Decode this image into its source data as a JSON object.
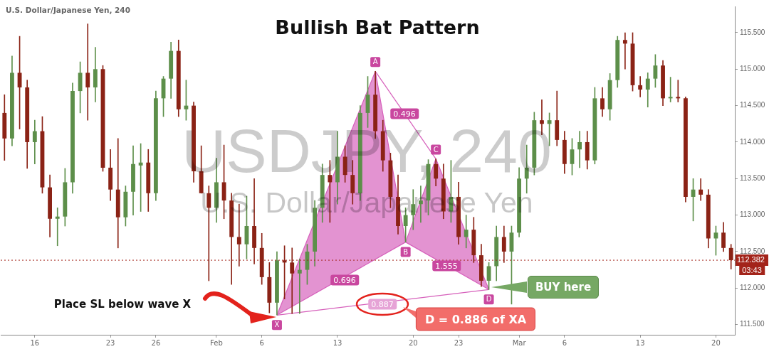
{
  "chart_data": {
    "type": "candlestick",
    "title": "Bullish Bat Pattern",
    "subtitle": "U.S. Dollar/Japanese Yen, 240",
    "categories": [
      null,
      null,
      null,
      null,
      "16",
      null,
      null,
      null,
      null,
      null,
      null,
      null,
      null,
      null,
      "23",
      null,
      null,
      null,
      null,
      null,
      "26",
      null,
      null,
      null,
      null,
      null,
      null,
      null,
      "Feb",
      null,
      null,
      null,
      null,
      null,
      "6",
      null,
      null,
      null,
      null,
      null,
      null,
      null,
      null,
      null,
      "13",
      null,
      null,
      null,
      null,
      null,
      null,
      null,
      null,
      null,
      "20",
      null,
      null,
      null,
      null,
      null,
      "23",
      null,
      null,
      null,
      null,
      null,
      null,
      null,
      "Mar",
      null,
      null,
      null,
      null,
      null,
      "6",
      null,
      null,
      null,
      null,
      null,
      null,
      null,
      null,
      null,
      "13",
      null,
      null,
      null,
      null,
      null,
      null,
      null,
      null,
      null,
      "20",
      null,
      null
    ],
    "ohlc": [
      [
        114.4,
        114.65,
        113.75,
        114.05
      ],
      [
        114.05,
        115.18,
        113.95,
        114.95
      ],
      [
        114.95,
        115.45,
        114.18,
        114.75
      ],
      [
        114.75,
        114.85,
        113.64,
        114.0
      ],
      [
        114.0,
        114.3,
        113.7,
        114.15
      ],
      [
        114.15,
        114.35,
        113.3,
        113.38
      ],
      [
        113.38,
        113.55,
        112.7,
        112.95
      ],
      [
        112.95,
        113.1,
        112.58,
        112.98
      ],
      [
        112.98,
        113.64,
        112.85,
        113.45
      ],
      [
        113.45,
        114.81,
        113.3,
        114.7
      ],
      [
        114.7,
        115.1,
        114.4,
        114.95
      ],
      [
        114.95,
        115.62,
        114.3,
        114.75
      ],
      [
        114.75,
        115.3,
        114.55,
        115.0
      ],
      [
        115.0,
        115.05,
        113.6,
        113.65
      ],
      [
        113.65,
        113.9,
        113.2,
        113.35
      ],
      [
        113.35,
        114.05,
        112.55,
        112.97
      ],
      [
        112.97,
        113.4,
        112.85,
        113.32
      ],
      [
        113.32,
        113.95,
        113.0,
        113.7
      ],
      [
        113.68,
        113.98,
        113.05,
        113.72
      ],
      [
        113.72,
        113.9,
        113.05,
        113.3
      ],
      [
        113.3,
        114.7,
        113.2,
        114.6
      ],
      [
        114.6,
        114.9,
        114.35,
        114.87
      ],
      [
        114.87,
        115.37,
        114.6,
        115.25
      ],
      [
        115.25,
        115.4,
        114.35,
        114.45
      ],
      [
        114.45,
        114.85,
        114.3,
        114.5
      ],
      [
        114.5,
        114.55,
        113.45,
        113.6
      ],
      [
        113.6,
        113.95,
        113.3,
        113.3
      ],
      [
        113.3,
        113.4,
        112.1,
        113.1
      ],
      [
        113.1,
        113.78,
        112.9,
        113.45
      ],
      [
        113.45,
        113.96,
        112.95,
        113.2
      ],
      [
        113.2,
        113.3,
        112.05,
        112.7
      ],
      [
        112.7,
        113.15,
        112.3,
        112.6
      ],
      [
        112.6,
        113.26,
        112.4,
        112.85
      ],
      [
        112.85,
        113.5,
        112.33,
        112.55
      ],
      [
        112.55,
        112.75,
        112.05,
        112.15
      ],
      [
        112.15,
        112.35,
        111.66,
        111.8
      ],
      [
        111.8,
        112.5,
        111.63,
        112.38
      ],
      [
        112.38,
        112.58,
        111.85,
        112.35
      ],
      [
        112.35,
        112.55,
        111.65,
        112.2
      ],
      [
        112.2,
        112.4,
        111.65,
        112.25
      ],
      [
        112.25,
        112.6,
        112.05,
        112.5
      ],
      [
        112.5,
        113.2,
        112.3,
        113.1
      ],
      [
        113.1,
        113.7,
        112.9,
        113.55
      ],
      [
        113.55,
        113.75,
        112.9,
        113.45
      ],
      [
        113.45,
        114.15,
        113.15,
        113.8
      ],
      [
        113.8,
        113.95,
        113.45,
        113.55
      ],
      [
        113.55,
        113.75,
        113.15,
        113.3
      ],
      [
        113.3,
        114.5,
        113.2,
        114.4
      ],
      [
        114.4,
        114.9,
        114.2,
        114.65
      ],
      [
        114.65,
        114.97,
        114.05,
        114.15
      ],
      [
        114.15,
        114.3,
        113.6,
        113.75
      ],
      [
        113.75,
        113.85,
        113.1,
        113.25
      ],
      [
        113.25,
        113.55,
        112.74,
        112.85
      ],
      [
        112.85,
        113.1,
        112.63,
        113.0
      ],
      [
        113.0,
        113.35,
        112.8,
        113.15
      ],
      [
        113.15,
        113.4,
        112.9,
        113.2
      ],
      [
        113.2,
        113.76,
        113.0,
        113.7
      ],
      [
        113.7,
        113.77,
        113.4,
        113.5
      ],
      [
        113.5,
        113.7,
        112.95,
        113.05
      ],
      [
        113.05,
        113.75,
        112.9,
        113.25
      ],
      [
        113.25,
        113.45,
        112.6,
        112.7
      ],
      [
        112.7,
        113.0,
        112.55,
        112.8
      ],
      [
        112.8,
        112.97,
        112.35,
        112.45
      ],
      [
        112.45,
        112.6,
        112.02,
        112.1
      ],
      [
        112.1,
        112.35,
        111.98,
        112.3
      ],
      [
        112.3,
        112.85,
        112.1,
        112.7
      ],
      [
        112.7,
        112.85,
        112.35,
        112.5
      ],
      [
        112.5,
        112.85,
        111.78,
        112.76
      ],
      [
        112.76,
        113.65,
        112.7,
        113.5
      ],
      [
        113.5,
        113.96,
        113.3,
        113.65
      ],
      [
        113.65,
        114.41,
        113.55,
        114.3
      ],
      [
        114.3,
        114.58,
        114.1,
        114.25
      ],
      [
        114.25,
        114.4,
        113.95,
        114.3
      ],
      [
        114.3,
        114.7,
        113.95,
        114.03
      ],
      [
        114.03,
        114.15,
        113.57,
        113.7
      ],
      [
        113.7,
        114.05,
        113.55,
        113.9
      ],
      [
        113.9,
        114.15,
        113.65,
        114.0
      ],
      [
        114.0,
        114.15,
        113.63,
        113.75
      ],
      [
        113.75,
        114.75,
        113.7,
        114.6
      ],
      [
        114.6,
        114.75,
        114.35,
        114.45
      ],
      [
        114.45,
        114.94,
        114.3,
        114.85
      ],
      [
        114.85,
        115.45,
        114.75,
        115.4
      ],
      [
        115.4,
        115.5,
        115.0,
        115.35
      ],
      [
        115.35,
        115.5,
        114.7,
        114.78
      ],
      [
        114.78,
        114.9,
        114.62,
        114.72
      ],
      [
        114.72,
        114.95,
        114.48,
        114.87
      ],
      [
        114.87,
        115.2,
        114.75,
        115.05
      ],
      [
        115.05,
        115.12,
        114.5,
        114.6
      ],
      [
        114.6,
        114.89,
        114.55,
        114.62
      ],
      [
        114.62,
        114.85,
        114.55,
        114.6
      ],
      [
        114.6,
        114.62,
        113.18,
        113.25
      ],
      [
        113.25,
        113.5,
        112.92,
        113.35
      ],
      [
        113.35,
        113.5,
        113.2,
        113.28
      ],
      [
        113.28,
        113.35,
        112.55,
        112.68
      ],
      [
        112.68,
        112.85,
        112.45,
        112.76
      ],
      [
        112.76,
        112.9,
        112.5,
        112.55
      ],
      [
        112.55,
        112.6,
        112.26,
        112.382
      ]
    ],
    "colors": [
      "#8b2316",
      "#5d8f4a",
      "#8b2316",
      "#8b2316",
      "#5d8f4a",
      "#8b2316",
      "#8b2316",
      "#5d8f4a",
      "#5d8f4a",
      "#5d8f4a",
      "#5d8f4a",
      "#8b2316",
      "#5d8f4a",
      "#8b2316",
      "#8b2316",
      "#8b2316",
      "#5d8f4a",
      "#5d8f4a",
      "#5d8f4a",
      "#8b2316",
      "#5d8f4a",
      "#5d8f4a",
      "#5d8f4a",
      "#8b2316",
      "#5d8f4a",
      "#8b2316",
      "#8b2316",
      "#8b2316",
      "#5d8f4a",
      "#8b2316",
      "#8b2316",
      "#8b2316",
      "#5d8f4a",
      "#8b2316",
      "#8b2316",
      "#8b2316",
      "#5d8f4a",
      "#8b2316",
      "#8b2316",
      "#5d8f4a",
      "#5d8f4a",
      "#5d8f4a",
      "#5d8f4a",
      "#8b2316",
      "#5d8f4a",
      "#8b2316",
      "#8b2316",
      "#5d8f4a",
      "#5d8f4a",
      "#8b2316",
      "#8b2316",
      "#8b2316",
      "#8b2316",
      "#5d8f4a",
      "#5d8f4a",
      "#5d8f4a",
      "#5d8f4a",
      "#8b2316",
      "#8b2316",
      "#5d8f4a",
      "#8b2316",
      "#5d8f4a",
      "#8b2316",
      "#8b2316",
      "#5d8f4a",
      "#5d8f4a",
      "#8b2316",
      "#5d8f4a",
      "#5d8f4a",
      "#5d8f4a",
      "#5d8f4a",
      "#8b2316",
      "#5d8f4a",
      "#8b2316",
      "#8b2316",
      "#5d8f4a",
      "#5d8f4a",
      "#8b2316",
      "#5d8f4a",
      "#8b2316",
      "#5d8f4a",
      "#5d8f4a",
      "#8b2316",
      "#8b2316",
      "#8b2316",
      "#5d8f4a",
      "#5d8f4a",
      "#8b2316",
      "#5d8f4a",
      "#8b2316",
      "#8b2316",
      "#5d8f4a",
      "#8b2316",
      "#8b2316",
      "#5d8f4a",
      "#8b2316",
      "#8b2316"
    ],
    "series": [
      {
        "type": "area",
        "color": "#d660bb",
        "values": [
          null,
          null,
          null,
          null,
          null,
          null,
          null,
          null,
          null,
          null,
          null,
          null,
          null,
          null,
          null,
          null,
          null,
          null,
          null,
          null,
          null,
          null,
          null,
          null,
          null,
          null,
          null,
          null,
          null,
          null,
          null,
          null,
          null,
          null,
          null,
          null,
          111.63,
          null,
          null,
          null,
          null,
          null,
          null,
          null,
          null,
          null,
          null,
          null,
          null,
          114.97,
          null,
          null,
          null,
          112.63,
          null,
          null,
          null,
          null,
          null,
          null,
          null,
          null,
          null,
          null,
          null,
          null,
          null,
          null,
          null,
          null,
          null,
          null,
          null,
          null,
          null,
          null,
          null,
          null,
          null,
          null,
          null,
          null,
          null,
          null,
          null,
          null,
          null,
          null,
          null,
          null,
          null,
          null,
          null,
          null,
          null,
          null,
          null
        ],
        "value_labels": [
          null,
          null,
          null,
          null,
          null,
          null,
          null,
          null,
          null,
          null,
          null,
          null,
          null,
          null,
          null,
          null,
          null,
          null,
          null,
          null,
          null,
          null,
          null,
          null,
          null,
          null,
          null,
          null,
          null,
          null,
          null,
          null,
          null,
          null,
          null,
          null,
          null,
          null,
          null,
          null,
          null,
          null,
          null,
          null,
          null,
          null,
          null,
          null,
          null,
          "A",
          null,
          null,
          null,
          null,
          null,
          null,
          null,
          null,
          null,
          null,
          null,
          null,
          null,
          null,
          null,
          null,
          null,
          null,
          null,
          null,
          null,
          null,
          null,
          null,
          null,
          null,
          null,
          null,
          null,
          null,
          null,
          null,
          null,
          null,
          null,
          null,
          null,
          null,
          null,
          null,
          null,
          null,
          null,
          null,
          null,
          null,
          null
        ]
      },
      {
        "type": "line",
        "color": "#d660bb",
        "values": [
          null,
          null,
          null,
          null,
          null,
          null,
          null,
          null,
          null,
          null,
          null,
          null,
          null,
          null,
          null,
          null,
          null,
          null,
          null,
          null,
          null,
          null,
          null,
          null,
          null,
          null,
          null,
          null,
          null,
          null,
          null,
          null,
          null,
          null,
          null,
          null,
          111.63,
          null,
          null,
          null,
          null,
          null,
          null,
          null,
          null,
          null,
          null,
          null,
          null,
          null,
          null,
          null,
          null,
          112.63,
          null,
          null,
          null,
          null,
          null,
          null,
          null,
          null,
          null,
          null,
          111.98,
          null,
          null,
          null,
          null,
          null,
          null,
          null,
          null,
          null,
          null,
          null,
          null,
          null,
          null,
          null,
          null,
          null,
          null,
          null,
          null,
          null,
          null,
          null,
          null,
          null,
          null,
          null,
          null,
          null,
          null,
          null,
          null
        ],
        "value_labels": [
          null,
          null,
          null,
          null,
          null,
          null,
          null,
          null,
          null,
          null,
          null,
          null,
          null,
          null,
          null,
          null,
          null,
          null,
          null,
          null,
          null,
          null,
          null,
          null,
          null,
          null,
          null,
          null,
          null,
          null,
          null,
          null,
          null,
          null,
          null,
          null,
          "X",
          null,
          null,
          null,
          null,
          null,
          null,
          null,
          null,
          null,
          null,
          null,
          null,
          null,
          null,
          null,
          null,
          "B",
          null,
          null,
          null,
          null,
          null,
          null,
          null,
          null,
          null,
          null,
          "D",
          null,
          null,
          null,
          null,
          null,
          null,
          null,
          null,
          null,
          null,
          null,
          null,
          null,
          null,
          null,
          null,
          null,
          null,
          null,
          null,
          null,
          null,
          null,
          null,
          null,
          null,
          null,
          null,
          null,
          null,
          null,
          null
        ]
      },
      {
        "type": "area",
        "color": "#d660bb",
        "values": [
          null,
          null,
          null,
          null,
          null,
          null,
          null,
          null,
          null,
          null,
          null,
          null,
          null,
          null,
          null,
          null,
          null,
          null,
          null,
          null,
          null,
          null,
          null,
          null,
          null,
          null,
          null,
          null,
          null,
          null,
          null,
          null,
          null,
          null,
          null,
          null,
          null,
          null,
          null,
          null,
          null,
          null,
          null,
          null,
          null,
          null,
          null,
          null,
          null,
          null,
          null,
          null,
          null,
          112.63,
          null,
          null,
          null,
          113.77,
          null,
          null,
          null,
          null,
          null,
          null,
          111.98,
          null,
          null,
          null,
          null,
          null,
          null,
          null,
          null,
          null,
          null,
          null,
          null,
          null,
          null,
          null,
          null,
          null,
          null,
          null,
          null,
          null,
          null,
          null,
          null,
          null,
          null,
          null,
          null,
          null,
          null,
          null,
          null
        ],
        "value_labels": [
          null,
          null,
          null,
          null,
          null,
          null,
          null,
          null,
          null,
          null,
          null,
          null,
          null,
          null,
          null,
          null,
          null,
          null,
          null,
          null,
          null,
          null,
          null,
          null,
          null,
          null,
          null,
          null,
          null,
          null,
          null,
          null,
          null,
          null,
          null,
          null,
          null,
          null,
          null,
          null,
          null,
          null,
          null,
          null,
          null,
          null,
          null,
          null,
          null,
          null,
          null,
          null,
          null,
          null,
          null,
          null,
          null,
          "C",
          null,
          null,
          null,
          null,
          null,
          null,
          null,
          null,
          null,
          null,
          null,
          null,
          null,
          null,
          null,
          null,
          null,
          null,
          null,
          null,
          null,
          null,
          null,
          null,
          null,
          null,
          null,
          null,
          null,
          null,
          null,
          null,
          null,
          null,
          null,
          null,
          null,
          null,
          null
        ]
      },
      {
        "type": "line",
        "color": "#d660bb",
        "values": [
          null,
          null,
          null,
          null,
          null,
          null,
          null,
          null,
          null,
          null,
          null,
          null,
          null,
          null,
          null,
          null,
          null,
          null,
          null,
          null,
          null,
          null,
          null,
          null,
          null,
          null,
          null,
          null,
          null,
          null,
          null,
          null,
          null,
          null,
          null,
          null,
          null,
          null,
          null,
          null,
          null,
          null,
          null,
          null,
          null,
          null,
          null,
          null,
          null,
          114.97,
          null,
          null,
          null,
          null,
          null,
          null,
          null,
          113.77,
          null,
          null,
          null,
          null,
          null,
          null,
          null,
          null,
          null,
          null,
          null,
          null,
          null,
          null,
          null,
          null,
          null,
          null,
          null,
          null,
          null,
          null,
          null,
          null,
          null,
          null,
          null,
          null,
          null,
          null,
          null,
          null,
          null,
          null,
          null,
          null,
          null,
          null,
          null
        ]
      },
      {
        "type": "line",
        "color": "#d660bb",
        "values": [
          null,
          null,
          null,
          null,
          null,
          null,
          null,
          null,
          null,
          null,
          null,
          null,
          null,
          null,
          null,
          null,
          null,
          null,
          null,
          null,
          null,
          null,
          null,
          null,
          null,
          null,
          null,
          null,
          null,
          null,
          null,
          null,
          null,
          null,
          null,
          null,
          111.63,
          null,
          null,
          null,
          null,
          null,
          null,
          null,
          null,
          null,
          null,
          null,
          null,
          null,
          null,
          null,
          null,
          null,
          null,
          null,
          null,
          null,
          null,
          null,
          null,
          null,
          null,
          null,
          111.98,
          null,
          null,
          null,
          null,
          null,
          null,
          null,
          null,
          null,
          null,
          null,
          null,
          null,
          null,
          null,
          null,
          null,
          null,
          null,
          null,
          null,
          null,
          null,
          null,
          null,
          null,
          null,
          null,
          null,
          null,
          null,
          null
        ]
      }
    ],
    "ylim": [
      111.36,
      115.86
    ],
    "yticks": [
      {
        "value": 111.5,
        "label": "111.500"
      },
      {
        "value": 112,
        "label": "112.000"
      },
      {
        "value": 112.5,
        "label": "112.500"
      },
      {
        "value": 113,
        "label": "113.000"
      },
      {
        "value": 113.5,
        "label": "113.500"
      },
      {
        "value": 114,
        "label": "114.000"
      },
      {
        "value": 114.5,
        "label": "114.500"
      },
      {
        "value": 115,
        "label": "115.000"
      },
      {
        "value": 115.5,
        "label": "115.500"
      }
    ],
    "ref_lines": [
      {
        "axis": "y",
        "value": 112.382,
        "label": "112.382",
        "color": "#a3241a",
        "line_style": "dotted"
      }
    ],
    "annotations": [
      "USDJPY, 240",
      "U.S. Dollar/Japanese Yen",
      "0.496",
      "0.696",
      "1.555",
      "0.887",
      "Place SL below wave X",
      "BUY here",
      "D = 0.886 of XA",
      "03:43"
    ],
    "grid": false,
    "legend": false,
    "marker": "none"
  }
}
